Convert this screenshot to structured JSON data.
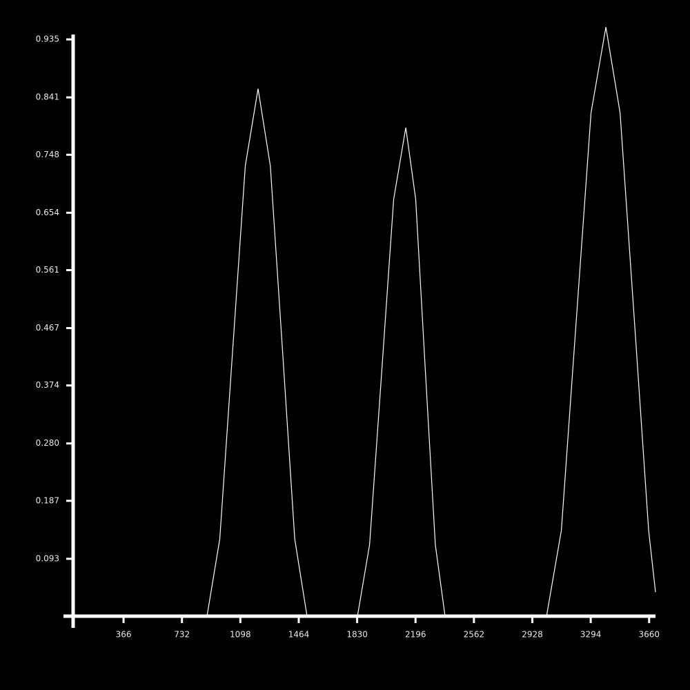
{
  "chart_data": {
    "type": "line",
    "x": [
      50,
      889,
      969,
      1049,
      1129,
      1209,
      1286,
      1363,
      1439,
      1516,
      1832,
      1908,
      1984,
      2059,
      2135,
      2197,
      2258,
      2320,
      2381,
      3017,
      3110,
      3203,
      3296,
      3389,
      3478,
      3568,
      3657,
      3700
    ],
    "values": [
      0,
      0,
      0.125,
      0.428,
      0.73,
      0.855,
      0.73,
      0.428,
      0.125,
      0,
      0,
      0.116,
      0.396,
      0.676,
      0.792,
      0.676,
      0.396,
      0.116,
      0,
      0,
      0.139,
      0.478,
      0.816,
      0.955,
      0.816,
      0.478,
      0.139,
      0.039
    ],
    "color": "#ffffff",
    "xlim": [
      50,
      3700
    ],
    "xticks": [
      366,
      732,
      1098,
      1464,
      1830,
      2196,
      2562,
      2928,
      3294,
      3660
    ],
    "ylim": [
      0,
      0.96
    ],
    "yticks": [
      0.093,
      0.187,
      {
        "value": 0.28,
        "label": "0.280"
      },
      0.374,
      0.467,
      0.561,
      0.654,
      0.748,
      0.841,
      0.935
    ]
  }
}
